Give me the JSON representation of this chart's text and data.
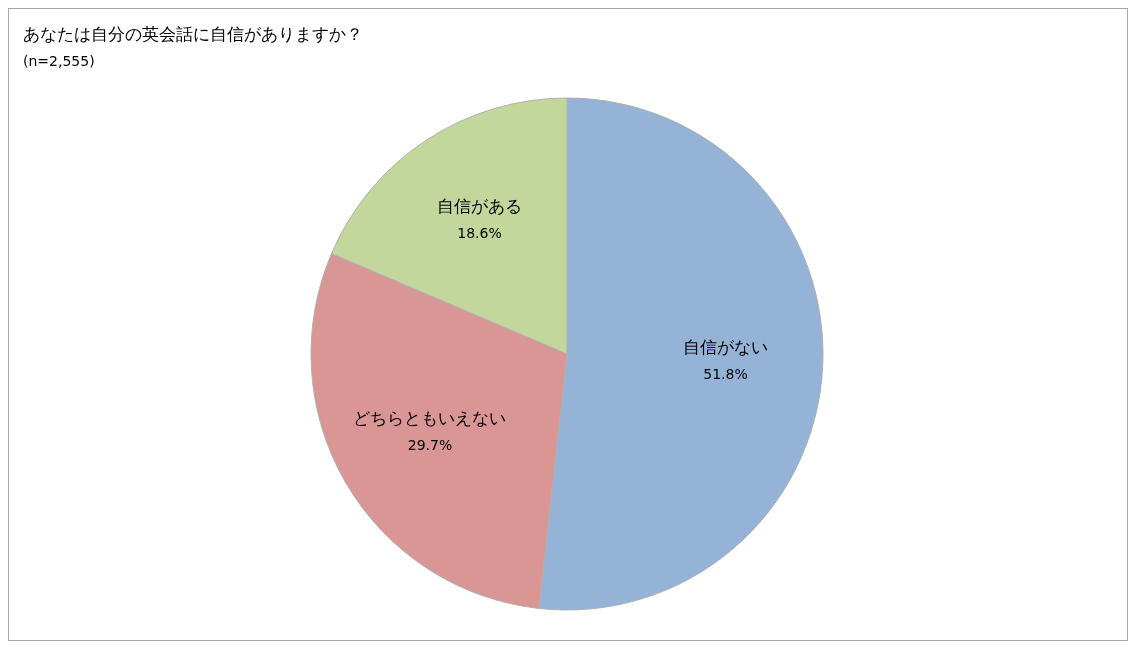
{
  "chart_data": {
    "type": "pie",
    "title": "あなたは自分の英会話に自信がありますか？",
    "subtitle": "(n=2,555)",
    "categories": [
      "自信がない",
      "どちらともいえない",
      "自信がある"
    ],
    "values": [
      51.8,
      29.7,
      18.6
    ],
    "colors": [
      "#95b3d7",
      "#d99694",
      "#c3d69b"
    ],
    "value_labels": [
      "51.8%",
      "29.7%",
      "18.6%"
    ],
    "legend": false
  }
}
